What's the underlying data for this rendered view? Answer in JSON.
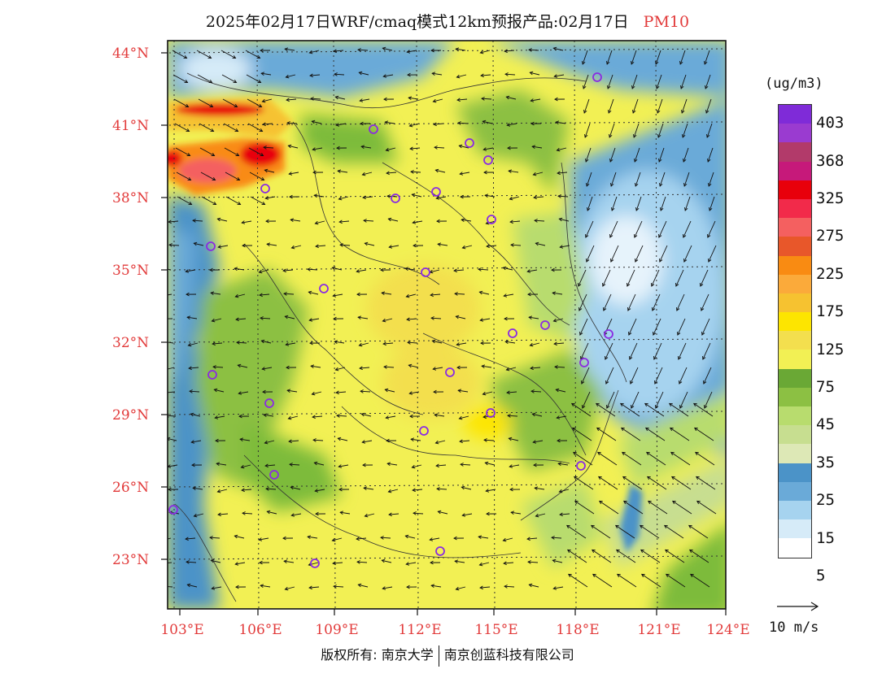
{
  "title": {
    "main": "2025年02月17日WRF/cmaq模式12km预报产品:02月17日",
    "pollutant": "PM10"
  },
  "colors": {
    "label_red": "#e23b3b",
    "station_marker": "#8a2be2",
    "clean_blue": "#4b93c8",
    "mid_green": "#7dbb3a",
    "dust_red": "#e8000b",
    "yellow": "#f5ea3a"
  },
  "latitude_labels": [
    "44°N",
    "41°N",
    "38°N",
    "35°N",
    "32°N",
    "29°N",
    "26°N",
    "23°N"
  ],
  "longitude_labels": [
    "103°E",
    "106°E",
    "109°E",
    "112°E",
    "115°E",
    "118°E",
    "121°E",
    "124°E"
  ],
  "legend": {
    "unit": "(ug/m3)",
    "ticks": [
      "403",
      "368",
      "325",
      "275",
      "225",
      "175",
      "125",
      "75",
      "45",
      "35",
      "25",
      "15",
      "5"
    ],
    "colors": [
      "#7f2bd8",
      "#9a3bd0",
      "#b23a6a",
      "#c6197a",
      "#e8000b",
      "#f22a4a",
      "#f46060",
      "#e8572a",
      "#f98b12",
      "#fbaa3a",
      "#f6c230",
      "#fde500",
      "#f3df4e",
      "#f2f054",
      "#6aa835",
      "#8cc043",
      "#b8dc6e",
      "#c7de90",
      "#dde8b6",
      "#4b93c8",
      "#6aaad8",
      "#a6d3ef",
      "#d6ebf8",
      "#ffffff"
    ]
  },
  "reference_vector": {
    "label": "10 m/s"
  },
  "copyright": {
    "left": "版权所有: 南京大学",
    "right": "南京创蓝科技有限公司"
  }
}
